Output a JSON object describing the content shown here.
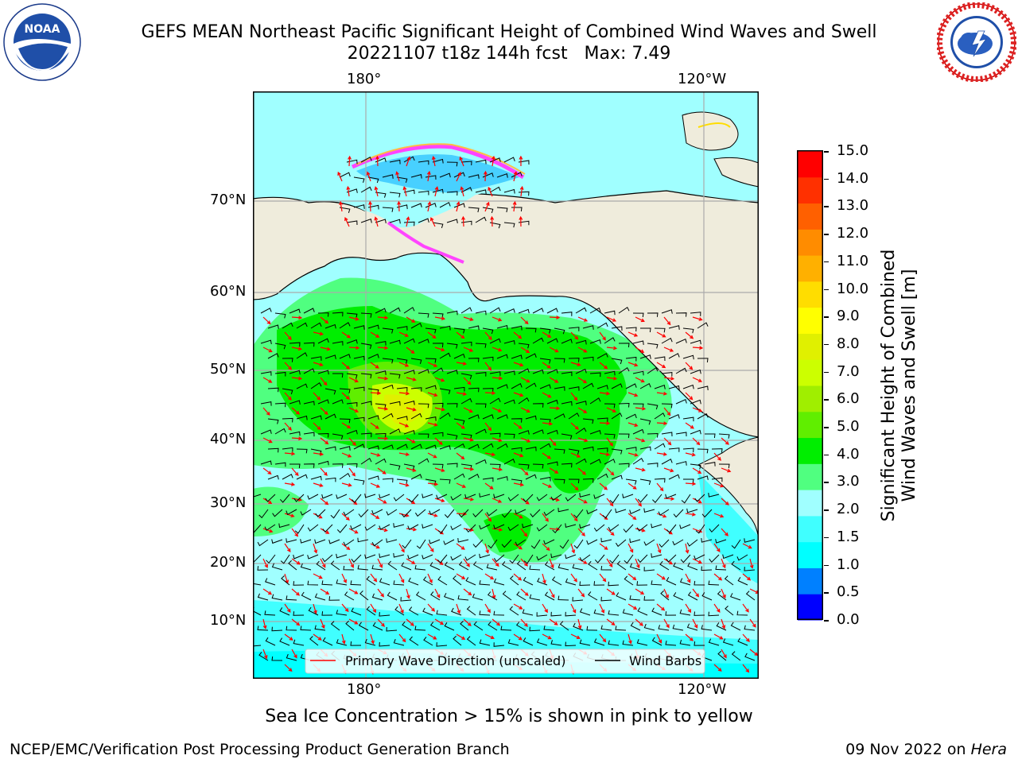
{
  "header": {
    "title": "GEFS MEAN Northeast Pacific Significant Height of Combined Wind Waves and Swell",
    "subtitle": "20221107 t18z 144h fcst   Max: 7.49"
  },
  "logos": {
    "left_icon": "noaa-logo",
    "left_text": "NOAA",
    "left_ring": "NATIONAL OCEANIC AND ATMOSPHERIC ADMINISTRATION",
    "left_ring_bottom": "U.S. DEPARTMENT OF COMMERCE",
    "right_icon": "nws-logo",
    "right_ring": "NATIONAL WEATHER SERVICE"
  },
  "map": {
    "lon_labels_top": [
      "180°",
      "120°W"
    ],
    "lon_labels_bottom": [
      "180°",
      "120°W"
    ],
    "lat_labels": [
      "70°N",
      "60°N",
      "50°N",
      "40°N",
      "30°N",
      "20°N",
      "10°N"
    ],
    "legend": {
      "wave_direction": "Primary Wave Direction (unscaled)",
      "wind_barbs": "Wind Barbs",
      "wave_color": "#ff0000",
      "barb_color": "#000000"
    },
    "land_color": "#efecdc"
  },
  "colorbar": {
    "title_line1": "Significant Height of Combined",
    "title_line2": "Wind Waves and Swell [m]",
    "ticks": [
      "15.0",
      "14.0",
      "13.0",
      "12.0",
      "11.0",
      "10.0",
      "9.0",
      "8.0",
      "7.0",
      "6.0",
      "5.0",
      "4.0",
      "3.0",
      "2.0",
      "1.5",
      "1.0",
      "0.5",
      "0.0"
    ],
    "colors_bottom_to_top": [
      "#0000ff",
      "#0080ff",
      "#00ffff",
      "#40ffff",
      "#a0ffff",
      "#50ff80",
      "#00ee00",
      "#60ee00",
      "#a0ee00",
      "#ccff00",
      "#e0f000",
      "#ffff00",
      "#ffdd00",
      "#ffb000",
      "#ff8c00",
      "#ff6000",
      "#ff3000",
      "#ff0000"
    ]
  },
  "caption": "Sea Ice Concentration > 15% is shown in pink to yellow",
  "footer": {
    "left": "NCEP/EMC/Verification Post Processing Product Generation Branch",
    "right_date": "09 Nov 2022 on ",
    "right_machine": "Hera"
  }
}
